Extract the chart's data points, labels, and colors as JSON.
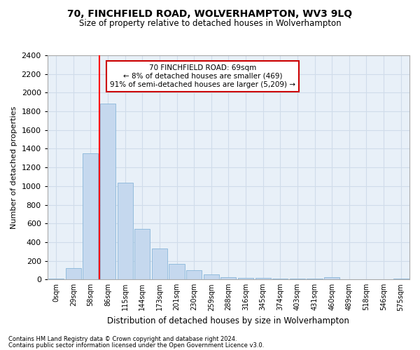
{
  "title": "70, FINCHFIELD ROAD, WOLVERHAMPTON, WV3 9LQ",
  "subtitle": "Size of property relative to detached houses in Wolverhampton",
  "xlabel": "Distribution of detached houses by size in Wolverhampton",
  "ylabel": "Number of detached properties",
  "bar_color": "#c5d8ee",
  "bar_edge_color": "#7aadd4",
  "grid_color": "#d0dcea",
  "background_color": "#e8f0f8",
  "categories": [
    "0sqm",
    "29sqm",
    "58sqm",
    "86sqm",
    "115sqm",
    "144sqm",
    "173sqm",
    "201sqm",
    "230sqm",
    "259sqm",
    "288sqm",
    "316sqm",
    "345sqm",
    "374sqm",
    "403sqm",
    "431sqm",
    "460sqm",
    "489sqm",
    "518sqm",
    "546sqm",
    "575sqm"
  ],
  "values": [
    10,
    120,
    1350,
    1880,
    1040,
    540,
    330,
    165,
    100,
    55,
    27,
    20,
    15,
    12,
    10,
    8,
    25,
    2,
    2,
    2,
    8
  ],
  "ylim": [
    0,
    2400
  ],
  "yticks": [
    0,
    200,
    400,
    600,
    800,
    1000,
    1200,
    1400,
    1600,
    1800,
    2000,
    2200,
    2400
  ],
  "red_line_index": 2.5,
  "annotation_text": "70 FINCHFIELD ROAD: 69sqm\n← 8% of detached houses are smaller (469)\n91% of semi-detached houses are larger (5,209) →",
  "annotation_box_color": "#ffffff",
  "annotation_box_edge": "#cc0000",
  "footnote1": "Contains HM Land Registry data © Crown copyright and database right 2024.",
  "footnote2": "Contains public sector information licensed under the Open Government Licence v3.0."
}
